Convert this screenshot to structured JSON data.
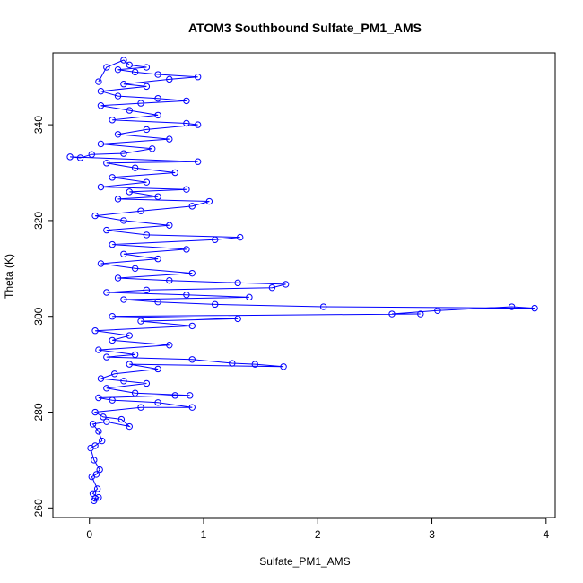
{
  "chart_data": {
    "type": "scatter",
    "title": "ATOM3 Southbound Sulfate_PM1_AMS",
    "xlabel": "Sulfate_PM1_AMS",
    "ylabel": "Theta (K)",
    "xlim": [
      -0.32,
      4.08
    ],
    "ylim": [
      258,
      355
    ],
    "x_ticks": [
      0,
      1,
      2,
      3,
      4
    ],
    "y_ticks": [
      260,
      280,
      300,
      320,
      340
    ],
    "x_tick_labels": [
      "0",
      "1",
      "2",
      "3",
      "4"
    ],
    "y_tick_labels": [
      "260",
      "280",
      "300",
      "320",
      "340"
    ],
    "grid": false,
    "legend": "none",
    "marker": "open-circle",
    "connected": true,
    "color": "#0000ff",
    "series": [
      {
        "points": [
          [
            0.05,
            262
          ],
          [
            0.04,
            261.5
          ],
          [
            0.08,
            262.2
          ],
          [
            0.03,
            263
          ],
          [
            0.07,
            264
          ],
          [
            0.02,
            266.5
          ],
          [
            0.06,
            267
          ],
          [
            0.09,
            268
          ],
          [
            0.04,
            270
          ],
          [
            0.01,
            272.5
          ],
          [
            0.05,
            273
          ],
          [
            0.11,
            274
          ],
          [
            0.08,
            276
          ],
          [
            0.03,
            277.5
          ],
          [
            0.15,
            278
          ],
          [
            0.35,
            277
          ],
          [
            0.28,
            278.5
          ],
          [
            0.12,
            279
          ],
          [
            0.05,
            280
          ],
          [
            0.45,
            281
          ],
          [
            0.9,
            281
          ],
          [
            0.6,
            282
          ],
          [
            0.2,
            282.5
          ],
          [
            0.08,
            283
          ],
          [
            0.75,
            283.5
          ],
          [
            0.88,
            283.5
          ],
          [
            0.4,
            284
          ],
          [
            0.15,
            285
          ],
          [
            0.5,
            286
          ],
          [
            0.3,
            286.5
          ],
          [
            0.1,
            287
          ],
          [
            0.22,
            288
          ],
          [
            0.6,
            289
          ],
          [
            0.35,
            290
          ],
          [
            1.7,
            289.5
          ],
          [
            1.45,
            290
          ],
          [
            1.25,
            290.2
          ],
          [
            0.9,
            291
          ],
          [
            0.15,
            291.5
          ],
          [
            0.4,
            292
          ],
          [
            0.08,
            293
          ],
          [
            0.7,
            294
          ],
          [
            0.2,
            295
          ],
          [
            0.35,
            296
          ],
          [
            0.05,
            297
          ],
          [
            0.9,
            298
          ],
          [
            0.45,
            299
          ],
          [
            1.3,
            299.5
          ],
          [
            0.2,
            300
          ],
          [
            2.9,
            300.5
          ],
          [
            2.65,
            300.5
          ],
          [
            3.05,
            301.2
          ],
          [
            3.7,
            302
          ],
          [
            3.9,
            301.7
          ],
          [
            2.05,
            302
          ],
          [
            1.1,
            302.5
          ],
          [
            0.6,
            303
          ],
          [
            0.3,
            303.5
          ],
          [
            1.4,
            304
          ],
          [
            0.85,
            304.5
          ],
          [
            0.15,
            305
          ],
          [
            0.5,
            305.5
          ],
          [
            1.6,
            306
          ],
          [
            1.72,
            306.7
          ],
          [
            1.3,
            307
          ],
          [
            0.7,
            307.5
          ],
          [
            0.25,
            308
          ],
          [
            0.9,
            309
          ],
          [
            0.4,
            310
          ],
          [
            0.1,
            311
          ],
          [
            0.6,
            312
          ],
          [
            0.3,
            313
          ],
          [
            0.85,
            314
          ],
          [
            0.2,
            315
          ],
          [
            1.1,
            316
          ],
          [
            1.32,
            316.5
          ],
          [
            0.5,
            317
          ],
          [
            0.15,
            318
          ],
          [
            0.7,
            319
          ],
          [
            0.3,
            320
          ],
          [
            0.05,
            321
          ],
          [
            0.45,
            322
          ],
          [
            0.9,
            323
          ],
          [
            1.05,
            324
          ],
          [
            0.25,
            324.5
          ],
          [
            0.6,
            325
          ],
          [
            0.35,
            326
          ],
          [
            0.85,
            326.5
          ],
          [
            0.1,
            327
          ],
          [
            0.5,
            328
          ],
          [
            0.2,
            329
          ],
          [
            0.75,
            330
          ],
          [
            0.4,
            331
          ],
          [
            0.15,
            332
          ],
          [
            0.95,
            332.3
          ],
          [
            -0.17,
            333.3
          ],
          [
            -0.08,
            333.1
          ],
          [
            0.02,
            333.8
          ],
          [
            0.3,
            334
          ],
          [
            0.55,
            335
          ],
          [
            0.1,
            336
          ],
          [
            0.7,
            337
          ],
          [
            0.25,
            338
          ],
          [
            0.5,
            339
          ],
          [
            0.95,
            340
          ],
          [
            0.85,
            340.3
          ],
          [
            0.2,
            341
          ],
          [
            0.6,
            342
          ],
          [
            0.35,
            343
          ],
          [
            0.1,
            344
          ],
          [
            0.45,
            344.5
          ],
          [
            0.85,
            345
          ],
          [
            0.6,
            345.5
          ],
          [
            0.25,
            346
          ],
          [
            0.1,
            347
          ],
          [
            0.5,
            348
          ],
          [
            0.3,
            348.5
          ],
          [
            0.7,
            349.5
          ],
          [
            0.95,
            350
          ],
          [
            0.6,
            350.5
          ],
          [
            0.4,
            351
          ],
          [
            0.25,
            351.5
          ],
          [
            0.5,
            352
          ],
          [
            0.35,
            352.5
          ],
          [
            0.3,
            353.5
          ],
          [
            0.15,
            352
          ],
          [
            0.08,
            349
          ]
        ]
      }
    ]
  }
}
